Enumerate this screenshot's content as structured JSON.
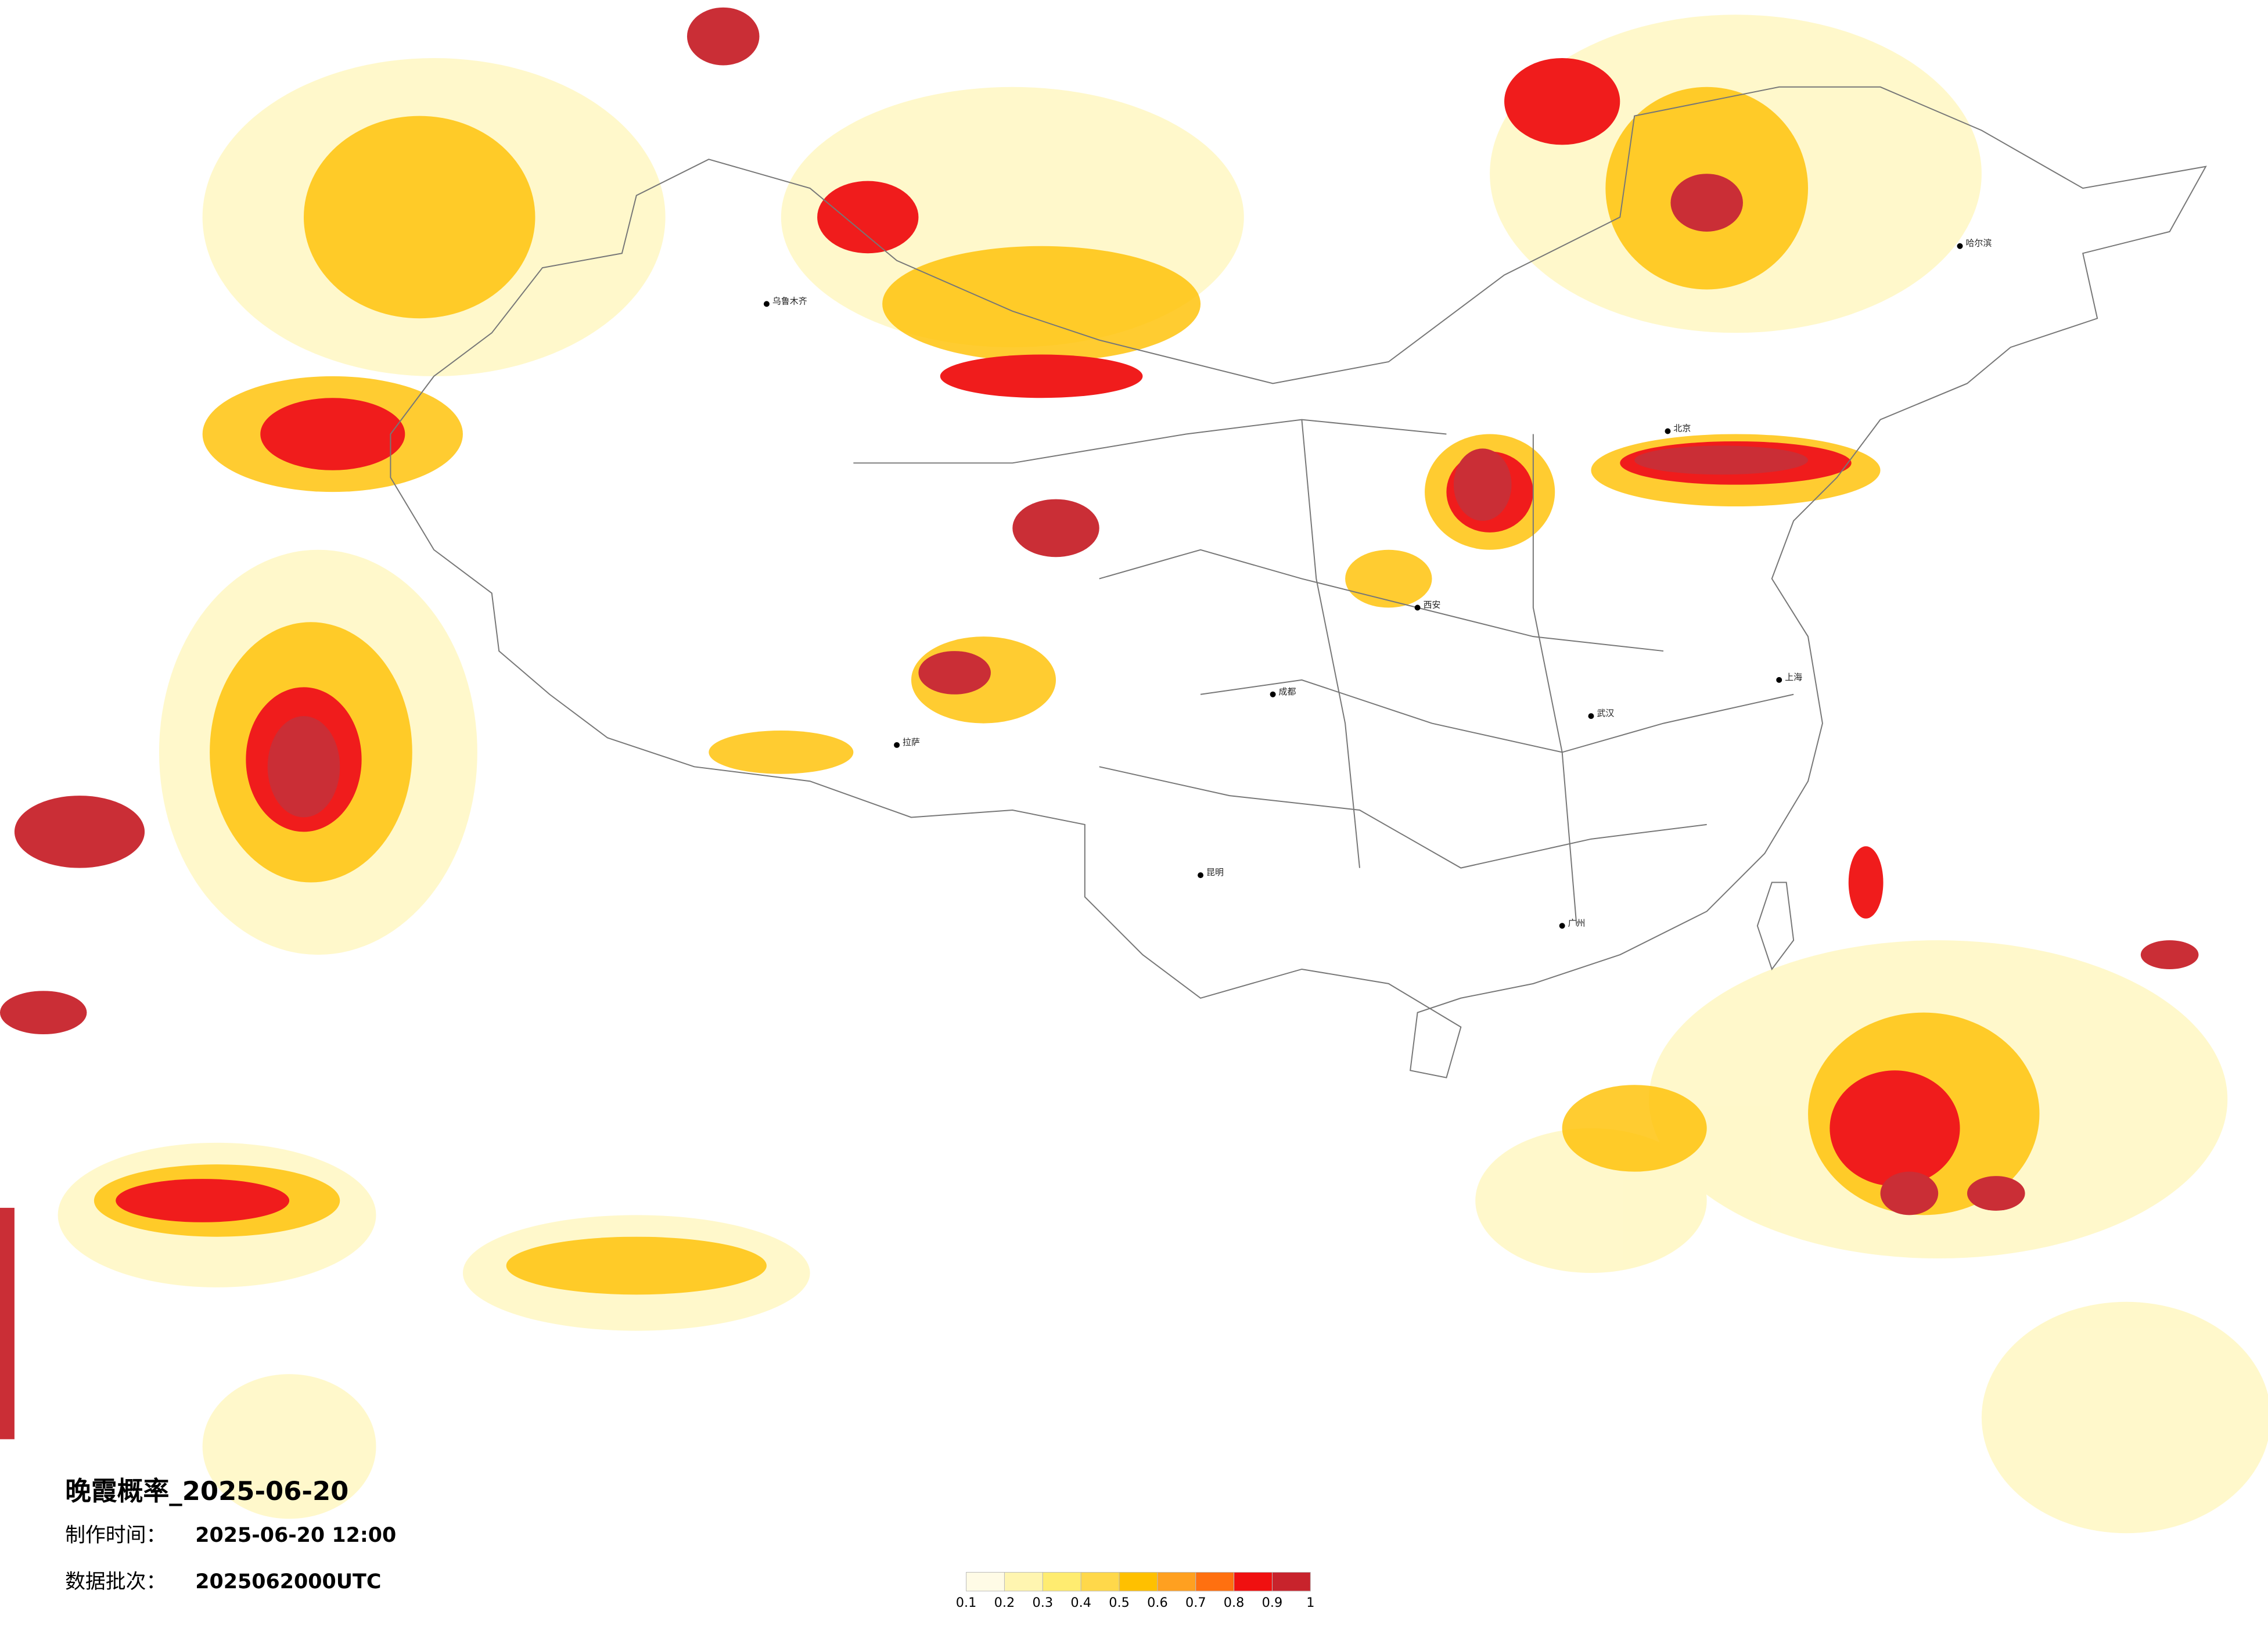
{
  "title": "晚霞概率_2025-06-20",
  "made_time_label": "制作时间：",
  "made_time": "2025-06-20 12:00",
  "batch_label": "数据批次：",
  "batch": "2025062000UTC",
  "colorbar": {
    "colors": [
      "#fffbe6",
      "#fff5b0",
      "#ffec70",
      "#ffd84a",
      "#ffc000",
      "#ffa020",
      "#ff7010",
      "#f01010",
      "#c8232c"
    ],
    "ticks": [
      0.1,
      0.2,
      0.3,
      0.4,
      0.5,
      0.6,
      0.7,
      0.8,
      0.9,
      1
    ]
  },
  "cities": [
    "北京",
    "上海",
    "广州",
    "成都",
    "武汉",
    "西安",
    "乌鲁木齐",
    "拉萨",
    "哈尔滨",
    "昆明"
  ]
}
